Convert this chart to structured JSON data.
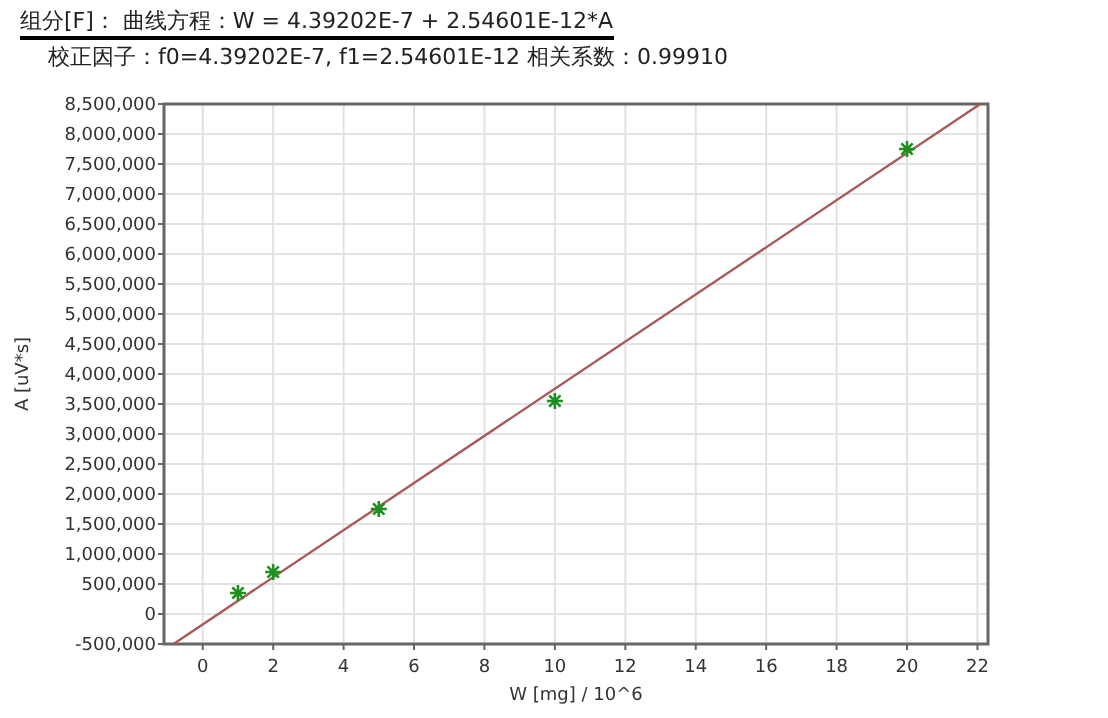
{
  "chart_data": {
    "type": "scatter",
    "title": "组分[F]： 曲线方程：W = 4.39202E-7 + 2.54601E-12*A",
    "subtitle": "校正因子：f0=4.39202E-7, f1=2.54601E-12   相关系数：0.99910",
    "xlabel": "W [mg] / 10^6",
    "ylabel": "A [uV*s]",
    "series": [
      {
        "color": "#1f8f1f",
        "marker": "cross",
        "x": [
          1,
          2,
          5,
          10,
          20
        ],
        "values": [
          350000,
          700000,
          1750000,
          3550000,
          7750000
        ]
      },
      {
        "type": "line",
        "color": "#a85a5a",
        "line_style": "solid",
        "marker": "none",
        "x": [
          -0.83,
          22.08
        ],
        "values": [
          -500000,
          8500000
        ]
      }
    ],
    "xlim": [
      -1.1,
      22.3
    ],
    "xticks": [
      0,
      2,
      4,
      6,
      8,
      10,
      12,
      14,
      16,
      18,
      20,
      22
    ],
    "ylim": [
      -500000,
      8500000
    ],
    "yticks": [
      {
        "value": -500000,
        "label": "-500,000"
      },
      {
        "value": 0,
        "label": "0"
      },
      {
        "value": 500000,
        "label": "500,000"
      },
      {
        "value": 1000000,
        "label": "1,000,000"
      },
      {
        "value": 1500000,
        "label": "1,500,000"
      },
      {
        "value": 2000000,
        "label": "2,000,000"
      },
      {
        "value": 2500000,
        "label": "2,500,000"
      },
      {
        "value": 3000000,
        "label": "3,000,000"
      },
      {
        "value": 3500000,
        "label": "3,500,000"
      },
      {
        "value": 4000000,
        "label": "4,000,000"
      },
      {
        "value": 4500000,
        "label": "4,500,000"
      },
      {
        "value": 5000000,
        "label": "5,000,000"
      },
      {
        "value": 5500000,
        "label": "5,500,000"
      },
      {
        "value": 6000000,
        "label": "6,000,000"
      },
      {
        "value": 6500000,
        "label": "6,500,000"
      },
      {
        "value": 7000000,
        "label": "7,000,000"
      },
      {
        "value": 7500000,
        "label": "7,500,000"
      },
      {
        "value": 8000000,
        "label": "8,000,000"
      },
      {
        "value": 8500000,
        "label": "8,500,000"
      }
    ],
    "grid": true
  }
}
